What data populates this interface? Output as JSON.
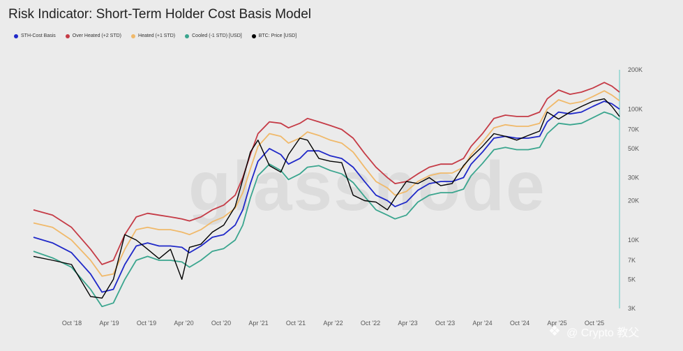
{
  "title": "Risk Indicator: Short-Term Holder Cost Basis Model",
  "watermark": {
    "bg_text": "glassnode",
    "text": "@ Crypto 教父",
    "icon": "binance-icon"
  },
  "legend": [
    {
      "label": "STH-Cost Basis",
      "color": "#1f28c8"
    },
    {
      "label": "Over Heated (+2 STD)",
      "color": "#c53b46"
    },
    {
      "label": "Heated (+1 STD)",
      "color": "#f0b96a"
    },
    {
      "label": "Cooled (-1 STD) [USD]",
      "color": "#3aa58e"
    },
    {
      "label": "BTC: Price [USD]",
      "color": "#000000"
    }
  ],
  "chart_data": {
    "type": "line",
    "y_scale": "log",
    "ylim": [
      3000,
      200000
    ],
    "y_ticks": [
      {
        "v": 3000,
        "l": "3K"
      },
      {
        "v": 5000,
        "l": "5K"
      },
      {
        "v": 7000,
        "l": "7K"
      },
      {
        "v": 10000,
        "l": "10K"
      },
      {
        "v": 20000,
        "l": "20K"
      },
      {
        "v": 30000,
        "l": "30K"
      },
      {
        "v": 50000,
        "l": "50K"
      },
      {
        "v": 70000,
        "l": "70K"
      },
      {
        "v": 100000,
        "l": "100K"
      },
      {
        "v": 200000,
        "l": "200K"
      }
    ],
    "x_ticks": [
      "Oct '18",
      "Apr '19",
      "Oct '19",
      "Apr '20",
      "Oct '20",
      "Apr '21",
      "Oct '21",
      "Apr '22",
      "Oct '22",
      "Apr '23",
      "Oct '23",
      "Apr '24",
      "Oct '24",
      "Apr '25",
      "Oct '25"
    ],
    "x_range": [
      2018.25,
      2025.95
    ],
    "x": [
      2018.25,
      2018.5,
      2018.75,
      2019.0,
      2019.15,
      2019.3,
      2019.45,
      2019.6,
      2019.75,
      2019.9,
      2020.05,
      2020.2,
      2020.3,
      2020.45,
      2020.6,
      2020.75,
      2020.9,
      2021.0,
      2021.1,
      2021.2,
      2021.35,
      2021.5,
      2021.6,
      2021.75,
      2021.85,
      2022.0,
      2022.15,
      2022.3,
      2022.45,
      2022.6,
      2022.75,
      2022.9,
      2023.0,
      2023.15,
      2023.3,
      2023.45,
      2023.6,
      2023.75,
      2023.9,
      2024.0,
      2024.15,
      2024.3,
      2024.45,
      2024.6,
      2024.75,
      2024.9,
      2025.0,
      2025.15,
      2025.3,
      2025.45,
      2025.6,
      2025.75,
      2025.85,
      2025.95
    ],
    "series": [
      {
        "name": "STH-Cost Basis",
        "color": "#1f28c8",
        "width": 1.8,
        "values": [
          10500,
          9500,
          8000,
          5500,
          4000,
          4200,
          6500,
          9000,
          9500,
          9000,
          9000,
          8800,
          8000,
          9000,
          10500,
          11000,
          13000,
          17000,
          27000,
          40000,
          50000,
          45000,
          38000,
          42000,
          48000,
          48000,
          44000,
          42000,
          36000,
          28000,
          22000,
          20000,
          18000,
          19500,
          24000,
          27000,
          28000,
          28000,
          30000,
          38000,
          47000,
          60000,
          62000,
          60000,
          60000,
          62000,
          80000,
          95000,
          92000,
          95000,
          105000,
          115000,
          110000,
          100000
        ]
      },
      {
        "name": "Over Heated (+2 STD)",
        "color": "#c53b46",
        "width": 1.8,
        "values": [
          17000,
          15500,
          12500,
          8500,
          6500,
          7000,
          11000,
          15000,
          16000,
          15500,
          15000,
          14500,
          14000,
          15000,
          17000,
          18500,
          22000,
          30000,
          45000,
          65000,
          80000,
          78000,
          72000,
          78000,
          85000,
          80000,
          75000,
          70000,
          60000,
          46000,
          36000,
          30000,
          27000,
          28000,
          32000,
          36000,
          38000,
          38000,
          42000,
          52000,
          65000,
          85000,
          90000,
          88000,
          88000,
          95000,
          120000,
          140000,
          130000,
          135000,
          145000,
          160000,
          150000,
          135000
        ]
      },
      {
        "name": "Heated (+1 STD)",
        "color": "#f0b96a",
        "width": 1.8,
        "values": [
          13500,
          12500,
          10000,
          7000,
          5300,
          5500,
          8500,
          12000,
          12500,
          12000,
          12000,
          11500,
          11000,
          12000,
          13800,
          15000,
          17500,
          23000,
          35000,
          52000,
          65000,
          62000,
          55000,
          60000,
          67000,
          63000,
          58000,
          55000,
          47000,
          36000,
          28000,
          25000,
          22000,
          23500,
          28000,
          31000,
          32500,
          32500,
          36000,
          45000,
          56000,
          72000,
          76000,
          74000,
          74000,
          78000,
          100000,
          118000,
          110000,
          114000,
          125000,
          138000,
          128000,
          116000
        ]
      },
      {
        "name": "Cooled (-1 STD) [USD]",
        "color": "#3aa58e",
        "width": 1.8,
        "values": [
          8200,
          7300,
          6200,
          4200,
          3100,
          3300,
          5000,
          7000,
          7500,
          7000,
          7000,
          6800,
          6200,
          7000,
          8200,
          8600,
          10000,
          13000,
          21000,
          31000,
          38000,
          34000,
          29000,
          32000,
          36000,
          37000,
          34000,
          32000,
          27500,
          21500,
          17000,
          15500,
          14500,
          15500,
          19500,
          22000,
          23000,
          23000,
          24500,
          31000,
          38500,
          49000,
          51000,
          49000,
          49000,
          51000,
          65000,
          78000,
          76000,
          78000,
          86000,
          95000,
          91000,
          83000
        ]
      },
      {
        "name": "BTC: Price [USD]",
        "color": "#000000",
        "width": 1.4,
        "values": [
          7500,
          7000,
          6500,
          3700,
          3600,
          5000,
          11000,
          10000,
          8500,
          7200,
          8500,
          5000,
          8800,
          9300,
          11500,
          13000,
          18000,
          29000,
          47000,
          58000,
          37000,
          33000,
          45000,
          60000,
          58000,
          42000,
          40000,
          39000,
          22000,
          20000,
          19500,
          17000,
          21000,
          28000,
          27000,
          30000,
          26000,
          27000,
          37000,
          43000,
          52000,
          65000,
          62000,
          58000,
          63000,
          68000,
          95000,
          84000,
          95000,
          105000,
          115000,
          120000,
          105000,
          88000
        ]
      }
    ]
  }
}
